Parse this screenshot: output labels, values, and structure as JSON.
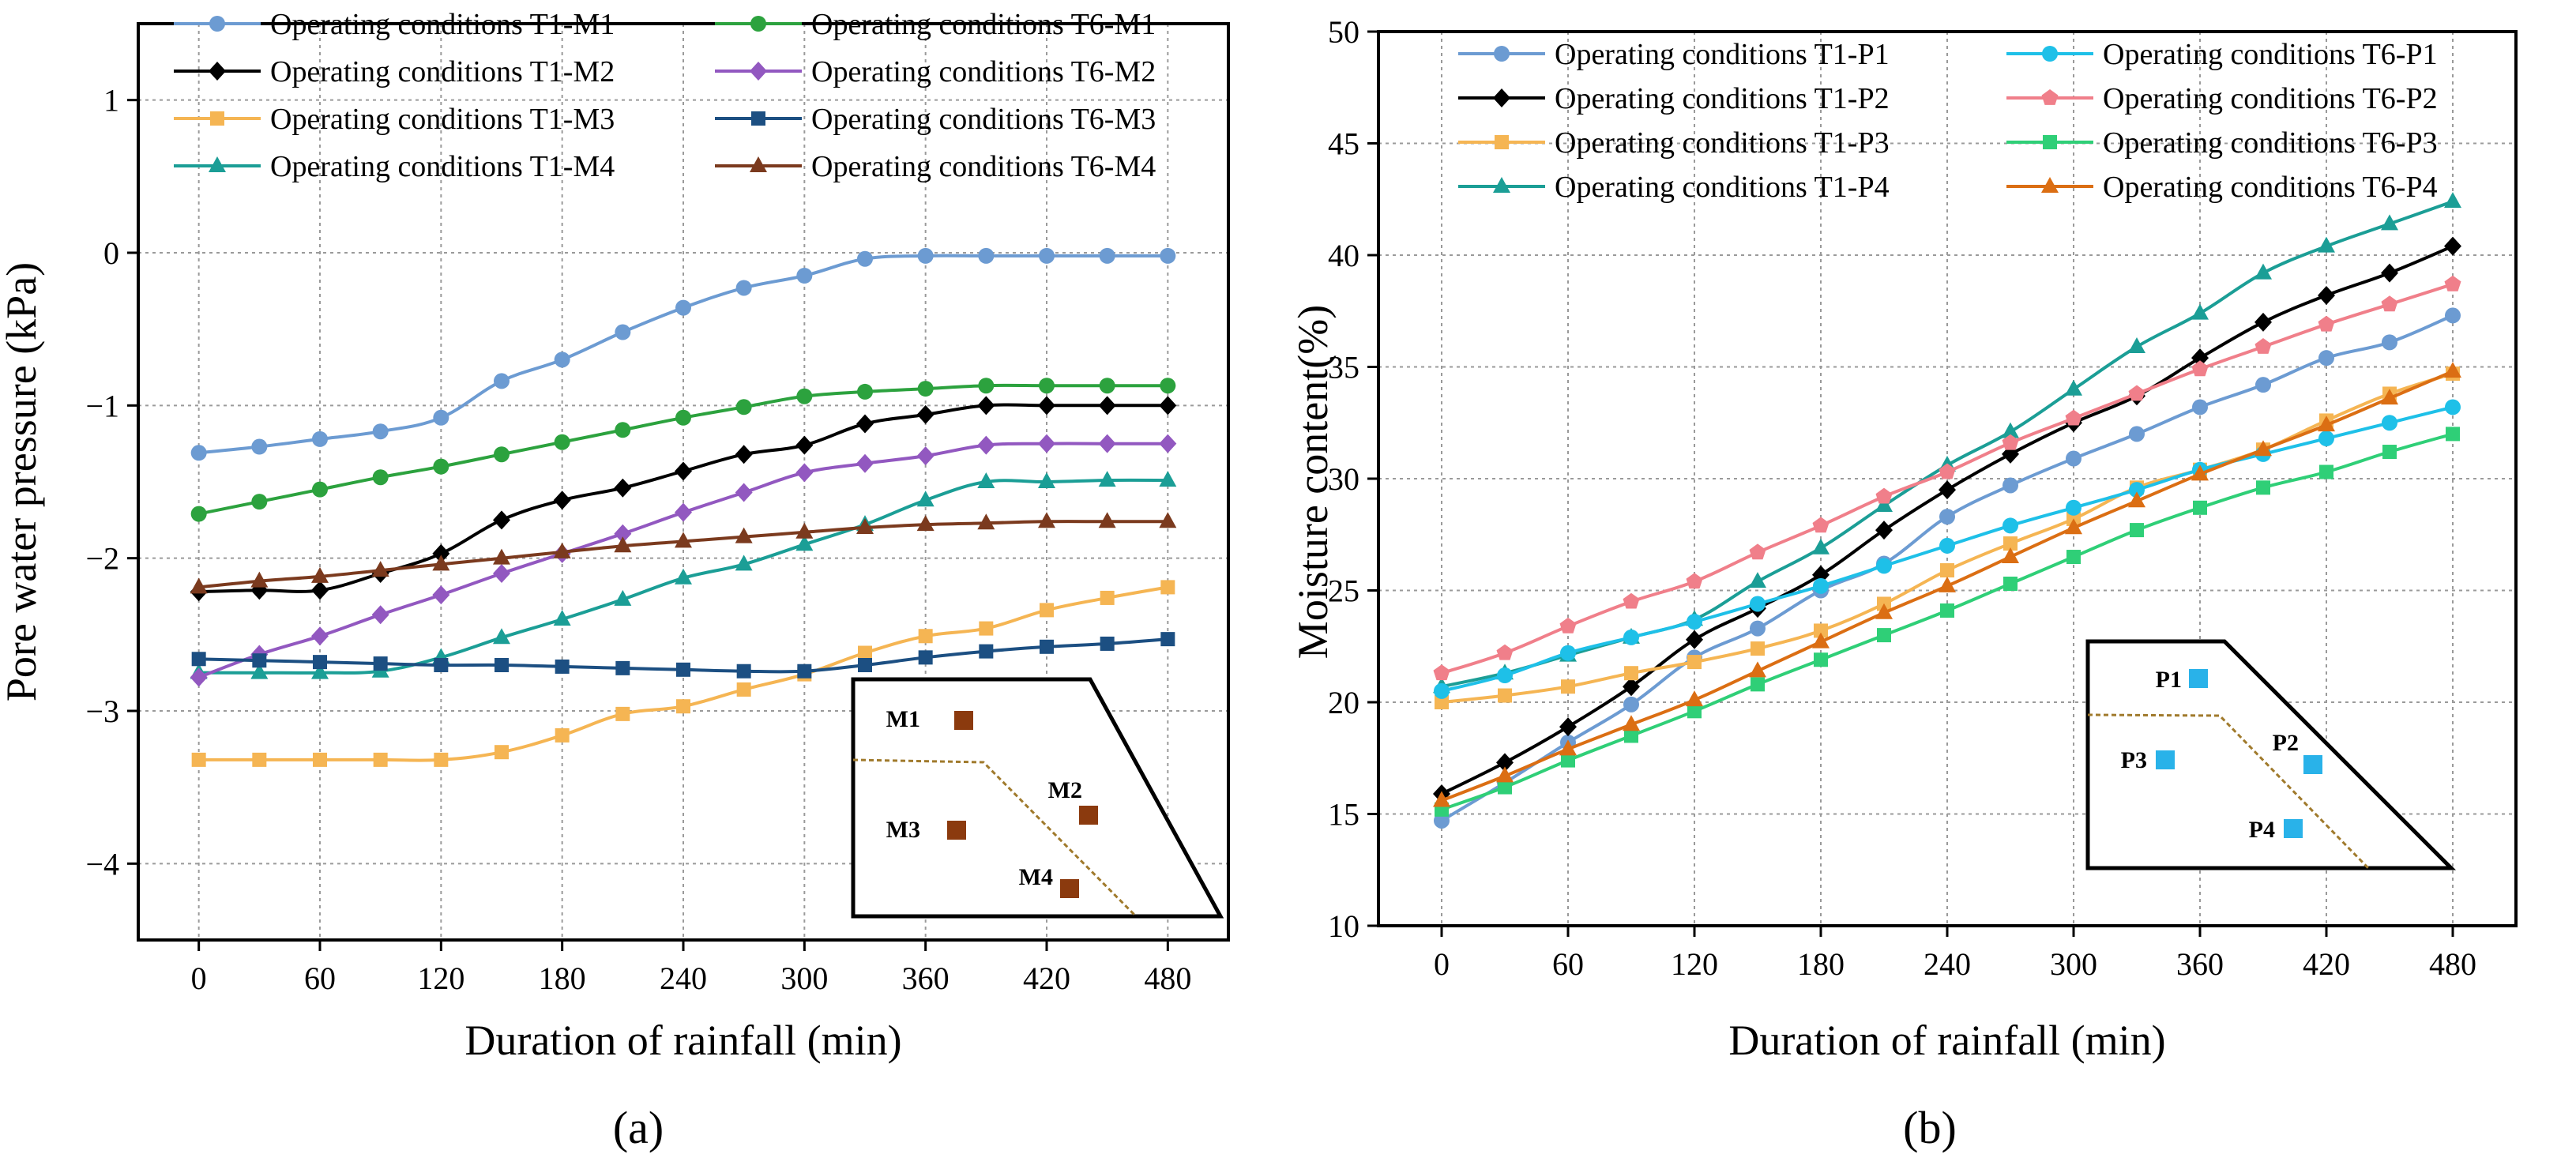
{
  "chart_data": [
    {
      "type": "line",
      "panel_label": "(a)",
      "xlabel": "Duration of rainfall (min)",
      "ylabel": "Pore water pressure (kPa)",
      "xlim": [
        -30,
        510
      ],
      "ylim": [
        -4.5,
        1.5
      ],
      "xticks": [
        0,
        60,
        120,
        180,
        240,
        300,
        360,
        420,
        480
      ],
      "yticks": [
        1,
        0,
        -1,
        -2,
        -3,
        -4
      ],
      "grid": true,
      "legend_position": "top-left",
      "x": [
        0,
        30,
        60,
        90,
        120,
        150,
        180,
        210,
        240,
        270,
        300,
        330,
        360,
        390,
        420,
        450,
        480
      ],
      "series": [
        {
          "name": "Operating conditions T1-M1",
          "color": "#6c9bd2",
          "marker": "circle",
          "values": [
            -1.31,
            -1.27,
            -1.22,
            -1.17,
            -1.08,
            -0.84,
            -0.7,
            -0.52,
            -0.36,
            -0.23,
            -0.15,
            -0.04,
            -0.02,
            -0.02,
            -0.02,
            -0.02,
            -0.02
          ]
        },
        {
          "name": "Operating conditions T1-M2",
          "color": "#000000",
          "marker": "diamond",
          "values": [
            -2.22,
            -2.21,
            -2.21,
            -2.1,
            -1.97,
            -1.75,
            -1.62,
            -1.54,
            -1.43,
            -1.32,
            -1.26,
            -1.12,
            -1.06,
            -1.0,
            -1.0,
            -1.0,
            -1.0
          ]
        },
        {
          "name": "Operating conditions T1-M3",
          "color": "#f5b553",
          "marker": "square",
          "values": [
            -3.32,
            -3.32,
            -3.32,
            -3.32,
            -3.32,
            -3.27,
            -3.16,
            -3.02,
            -2.97,
            -2.86,
            -2.76,
            -2.62,
            -2.51,
            -2.46,
            -2.34,
            -2.26,
            -2.19
          ]
        },
        {
          "name": "Operating conditions T1-M4",
          "color": "#1b9e96",
          "marker": "triangle",
          "values": [
            -2.75,
            -2.75,
            -2.75,
            -2.74,
            -2.65,
            -2.52,
            -2.4,
            -2.27,
            -2.13,
            -2.04,
            -1.91,
            -1.78,
            -1.62,
            -1.5,
            -1.5,
            -1.49,
            -1.49
          ]
        },
        {
          "name": "Operating conditions T6-M1",
          "color": "#2ca23e",
          "marker": "circle",
          "values": [
            -1.71,
            -1.63,
            -1.55,
            -1.47,
            -1.4,
            -1.32,
            -1.24,
            -1.16,
            -1.08,
            -1.01,
            -0.94,
            -0.91,
            -0.89,
            -0.87,
            -0.87,
            -0.87,
            -0.87
          ]
        },
        {
          "name": "Operating conditions T6-M2",
          "color": "#9258c0",
          "marker": "diamond",
          "values": [
            -2.78,
            -2.63,
            -2.51,
            -2.37,
            -2.24,
            -2.1,
            -1.97,
            -1.84,
            -1.7,
            -1.57,
            -1.44,
            -1.38,
            -1.33,
            -1.26,
            -1.25,
            -1.25,
            -1.25
          ]
        },
        {
          "name": "Operating conditions T6-M3",
          "color": "#1c4f82",
          "marker": "square",
          "values": [
            -2.66,
            -2.67,
            -2.68,
            -2.69,
            -2.7,
            -2.7,
            -2.71,
            -2.72,
            -2.73,
            -2.74,
            -2.74,
            -2.7,
            -2.65,
            -2.61,
            -2.58,
            -2.56,
            -2.53
          ]
        },
        {
          "name": "Operating conditions T6-M4",
          "color": "#7b3a1e",
          "marker": "triangle",
          "values": [
            -2.19,
            -2.15,
            -2.12,
            -2.08,
            -2.04,
            -2.0,
            -1.96,
            -1.92,
            -1.89,
            -1.86,
            -1.83,
            -1.8,
            -1.78,
            -1.77,
            -1.76,
            -1.76,
            -1.76
          ]
        }
      ],
      "inset": {
        "color": "#8b3a0e",
        "labels": [
          "M1",
          "M2",
          "M3",
          "M4"
        ]
      }
    },
    {
      "type": "line",
      "panel_label": "(b)",
      "xlabel": "Duration of rainfall (min)",
      "ylabel": "Moisture content(%)",
      "xlim": [
        -30,
        510
      ],
      "ylim": [
        10,
        50
      ],
      "xticks": [
        0,
        60,
        120,
        180,
        240,
        300,
        360,
        420,
        480
      ],
      "yticks": [
        10,
        15,
        20,
        25,
        30,
        35,
        40,
        45,
        50
      ],
      "grid": true,
      "legend_position": "top-left",
      "x": [
        0,
        30,
        60,
        90,
        120,
        150,
        180,
        210,
        240,
        270,
        300,
        330,
        360,
        390,
        420,
        450,
        480
      ],
      "series": [
        {
          "name": "Operating conditions T1-P1",
          "color": "#6c9bd2",
          "marker": "circle",
          "values": [
            14.7,
            16.4,
            18.2,
            19.9,
            22.0,
            23.3,
            25.0,
            26.2,
            28.3,
            29.7,
            30.9,
            32.0,
            33.2,
            34.2,
            35.4,
            36.1,
            37.3
          ]
        },
        {
          "name": "Operating conditions T1-P2",
          "color": "#000000",
          "marker": "diamond",
          "values": [
            15.9,
            17.3,
            18.9,
            20.7,
            22.8,
            24.2,
            25.7,
            27.7,
            29.5,
            31.1,
            32.5,
            33.7,
            35.4,
            37.0,
            38.2,
            39.2,
            40.4
          ]
        },
        {
          "name": "Operating conditions T1-P3",
          "color": "#f5b553",
          "marker": "square",
          "values": [
            20.0,
            20.3,
            20.7,
            21.3,
            21.8,
            22.4,
            23.2,
            24.4,
            25.9,
            27.1,
            28.2,
            29.6,
            30.4,
            31.3,
            32.6,
            33.8,
            34.7
          ]
        },
        {
          "name": "Operating conditions T1-P4",
          "color": "#1b9e96",
          "marker": "triangle",
          "values": [
            20.7,
            21.3,
            22.1,
            22.9,
            23.7,
            25.4,
            26.9,
            28.8,
            30.6,
            32.1,
            34.0,
            35.9,
            37.4,
            39.2,
            40.4,
            41.4,
            42.4
          ]
        },
        {
          "name": "Operating conditions T6-P1",
          "color": "#1ec0e8",
          "marker": "circle",
          "values": [
            20.5,
            21.2,
            22.2,
            22.9,
            23.6,
            24.4,
            25.2,
            26.1,
            27.0,
            27.9,
            28.7,
            29.5,
            30.4,
            31.1,
            31.8,
            32.5,
            33.2
          ]
        },
        {
          "name": "Operating conditions T6-P2",
          "color": "#f07f8a",
          "marker": "pentagon",
          "values": [
            21.3,
            22.2,
            23.4,
            24.5,
            25.4,
            26.7,
            27.9,
            29.2,
            30.3,
            31.6,
            32.7,
            33.8,
            34.9,
            35.9,
            36.9,
            37.8,
            38.7
          ]
        },
        {
          "name": "Operating conditions T6-P3",
          "color": "#2fcf77",
          "marker": "square",
          "values": [
            15.2,
            16.2,
            17.4,
            18.5,
            19.6,
            20.8,
            21.9,
            23.0,
            24.1,
            25.3,
            26.5,
            27.7,
            28.7,
            29.6,
            30.3,
            31.2,
            32.0
          ]
        },
        {
          "name": "Operating conditions T6-P4",
          "color": "#db6e13",
          "marker": "triangle",
          "values": [
            15.6,
            16.7,
            17.9,
            19.0,
            20.1,
            21.4,
            22.7,
            24.0,
            25.2,
            26.5,
            27.8,
            29.0,
            30.2,
            31.3,
            32.4,
            33.6,
            34.8
          ]
        }
      ],
      "inset": {
        "color": "#29b2e9",
        "labels": [
          "P1",
          "P2",
          "P3",
          "P4"
        ]
      }
    }
  ]
}
